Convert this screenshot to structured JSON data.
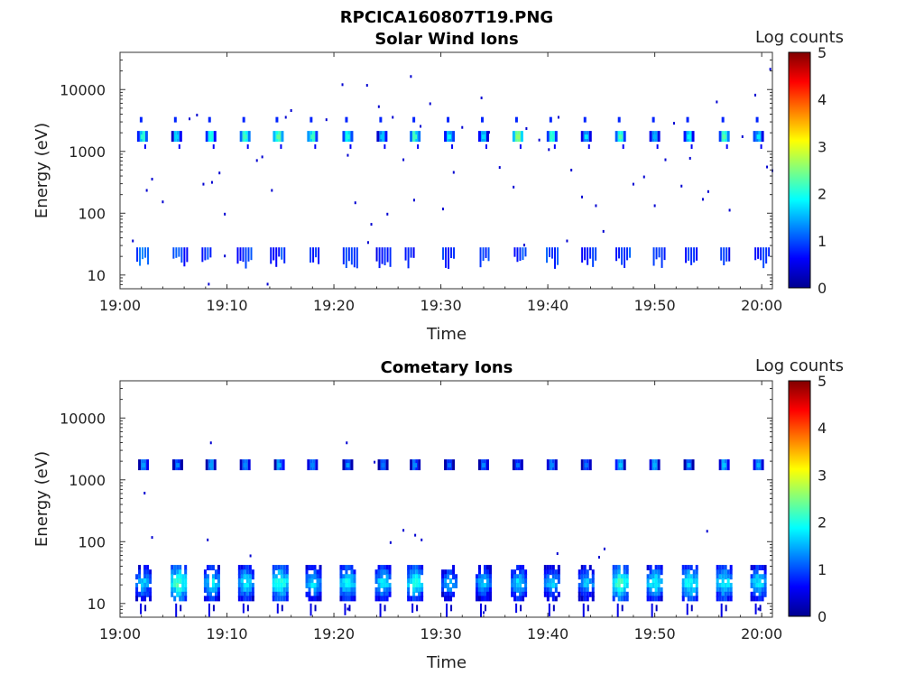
{
  "figure_title": "RPCICA160807T19.PNG",
  "chart_data": [
    {
      "type": "heatmap",
      "title": "Solar Wind Ions",
      "xlabel": "Time",
      "ylabel": "Energy (eV)",
      "xlim": [
        "19:00",
        "20:01"
      ],
      "ylim": [
        6,
        40000
      ],
      "y_scale": "log",
      "x_tick_labels": [
        "19:00",
        "19:10",
        "19:20",
        "19:30",
        "19:40",
        "19:50",
        "20:00"
      ],
      "y_tick_labels": [
        "10",
        "100",
        "1000",
        "10000"
      ],
      "colorbar": {
        "label": "Log counts",
        "min": 0,
        "max": 5,
        "ticks": [
          "0",
          "1",
          "2",
          "3",
          "4",
          "5"
        ]
      },
      "clusters": [
        {
          "t": 2.1,
          "e": 1750,
          "v": 2.1
        },
        {
          "t": 5.3,
          "e": 1750,
          "v": 1.7
        },
        {
          "t": 8.5,
          "e": 1750,
          "v": 2.0
        },
        {
          "t": 11.7,
          "e": 1750,
          "v": 2.2
        },
        {
          "t": 14.8,
          "e": 1750,
          "v": 2.4
        },
        {
          "t": 18.0,
          "e": 1750,
          "v": 2.2
        },
        {
          "t": 21.3,
          "e": 1750,
          "v": 2.0
        },
        {
          "t": 24.5,
          "e": 1750,
          "v": 1.6
        },
        {
          "t": 27.6,
          "e": 1750,
          "v": 2.2
        },
        {
          "t": 30.8,
          "e": 1750,
          "v": 1.9
        },
        {
          "t": 34.0,
          "e": 1750,
          "v": 1.7
        },
        {
          "t": 37.2,
          "e": 1750,
          "v": 2.6
        },
        {
          "t": 40.4,
          "e": 1750,
          "v": 2.1
        },
        {
          "t": 43.6,
          "e": 1750,
          "v": 1.8
        },
        {
          "t": 46.8,
          "e": 1750,
          "v": 2.3
        },
        {
          "t": 50.0,
          "e": 1750,
          "v": 1.5
        },
        {
          "t": 53.2,
          "e": 1750,
          "v": 1.9
        },
        {
          "t": 56.5,
          "e": 1750,
          "v": 2.3
        },
        {
          "t": 59.7,
          "e": 1750,
          "v": 1.8
        }
      ],
      "low_energy_blobs": [
        {
          "t": 2.2,
          "v": 0.8
        },
        {
          "t": 5.6,
          "v": 0.6
        },
        {
          "t": 8.3,
          "v": 0.7
        },
        {
          "t": 11.6,
          "v": 0.6
        },
        {
          "t": 14.7,
          "v": 0.6
        },
        {
          "t": 18.4,
          "v": 0.5
        },
        {
          "t": 21.5,
          "v": 0.6
        },
        {
          "t": 24.6,
          "v": 0.5
        },
        {
          "t": 27.3,
          "v": 0.5
        },
        {
          "t": 30.8,
          "v": 0.5
        },
        {
          "t": 34.3,
          "v": 0.6
        },
        {
          "t": 37.5,
          "v": 0.6
        },
        {
          "t": 40.5,
          "v": 0.7
        },
        {
          "t": 43.8,
          "v": 0.5
        },
        {
          "t": 47.0,
          "v": 0.7
        },
        {
          "t": 50.5,
          "v": 0.6
        },
        {
          "t": 53.5,
          "v": 0.6
        },
        {
          "t": 56.8,
          "v": 0.5
        },
        {
          "t": 60.0,
          "v": 0.6
        }
      ],
      "scatter": [
        {
          "t": 1.2,
          "e": 35
        },
        {
          "t": 2.5,
          "e": 230
        },
        {
          "t": 3.0,
          "e": 350
        },
        {
          "t": 4.0,
          "e": 150
        },
        {
          "t": 6.5,
          "e": 3300
        },
        {
          "t": 7.2,
          "e": 3800
        },
        {
          "t": 7.8,
          "e": 290
        },
        {
          "t": 8.6,
          "e": 310
        },
        {
          "t": 9.3,
          "e": 440
        },
        {
          "t": 9.8,
          "e": 95
        },
        {
          "t": 12.8,
          "e": 700
        },
        {
          "t": 13.3,
          "e": 800
        },
        {
          "t": 14.2,
          "e": 230
        },
        {
          "t": 15.5,
          "e": 3500
        },
        {
          "t": 16.0,
          "e": 4500
        },
        {
          "t": 19.3,
          "e": 3200
        },
        {
          "t": 20.8,
          "e": 11800
        },
        {
          "t": 21.3,
          "e": 850
        },
        {
          "t": 22.0,
          "e": 145
        },
        {
          "t": 23.1,
          "e": 11500
        },
        {
          "t": 23.5,
          "e": 65
        },
        {
          "t": 24.2,
          "e": 5200
        },
        {
          "t": 25.0,
          "e": 95
        },
        {
          "t": 25.5,
          "e": 3500
        },
        {
          "t": 26.5,
          "e": 720
        },
        {
          "t": 27.2,
          "e": 16000
        },
        {
          "t": 27.5,
          "e": 160
        },
        {
          "t": 28.1,
          "e": 2500
        },
        {
          "t": 29.0,
          "e": 5800
        },
        {
          "t": 30.2,
          "e": 115
        },
        {
          "t": 31.2,
          "e": 450
        },
        {
          "t": 32.0,
          "e": 2400
        },
        {
          "t": 33.8,
          "e": 7200
        },
        {
          "t": 34.5,
          "e": 2000
        },
        {
          "t": 35.5,
          "e": 540
        },
        {
          "t": 36.8,
          "e": 260
        },
        {
          "t": 38.0,
          "e": 2300
        },
        {
          "t": 39.2,
          "e": 1500
        },
        {
          "t": 40.1,
          "e": 1050
        },
        {
          "t": 41.0,
          "e": 3500
        },
        {
          "t": 42.2,
          "e": 490
        },
        {
          "t": 43.2,
          "e": 180
        },
        {
          "t": 44.5,
          "e": 130
        },
        {
          "t": 45.2,
          "e": 50
        },
        {
          "t": 48.0,
          "e": 290
        },
        {
          "t": 49.0,
          "e": 380
        },
        {
          "t": 50.0,
          "e": 130
        },
        {
          "t": 51.0,
          "e": 720
        },
        {
          "t": 51.8,
          "e": 2800
        },
        {
          "t": 52.5,
          "e": 270
        },
        {
          "t": 53.3,
          "e": 760
        },
        {
          "t": 54.5,
          "e": 165
        },
        {
          "t": 55.0,
          "e": 220
        },
        {
          "t": 55.8,
          "e": 6200
        },
        {
          "t": 57.0,
          "e": 110
        },
        {
          "t": 58.2,
          "e": 1700
        },
        {
          "t": 59.4,
          "e": 8000
        },
        {
          "t": 60.5,
          "e": 550
        },
        {
          "t": 60.8,
          "e": 21000
        },
        {
          "t": 61.0,
          "e": 480
        },
        {
          "t": 37.8,
          "e": 30
        },
        {
          "t": 41.8,
          "e": 35
        },
        {
          "t": 23.2,
          "e": 33
        },
        {
          "t": 9.8,
          "e": 20
        },
        {
          "t": 13.8,
          "e": 7
        },
        {
          "t": 8.3,
          "e": 7
        }
      ]
    },
    {
      "type": "heatmap",
      "title": "Cometary Ions",
      "xlabel": "Time",
      "ylabel": "Energy (eV)",
      "xlim": [
        "19:00",
        "20:01"
      ],
      "ylim": [
        6,
        40000
      ],
      "y_scale": "log",
      "x_tick_labels": [
        "19:00",
        "19:10",
        "19:20",
        "19:30",
        "19:40",
        "19:50",
        "20:00"
      ],
      "y_tick_labels": [
        "10",
        "100",
        "1000",
        "10000"
      ],
      "colorbar": {
        "label": "Log counts",
        "min": 0,
        "max": 5,
        "ticks": [
          "0",
          "1",
          "2",
          "3",
          "4",
          "5"
        ]
      },
      "clusters": [
        {
          "t": 2.2,
          "e": 1750,
          "v": 1.4
        },
        {
          "t": 5.4,
          "e": 1750,
          "v": 1.3
        },
        {
          "t": 8.5,
          "e": 1750,
          "v": 1.4
        },
        {
          "t": 11.7,
          "e": 1750,
          "v": 1.3
        },
        {
          "t": 14.9,
          "e": 1750,
          "v": 1.5
        },
        {
          "t": 18.0,
          "e": 1750,
          "v": 1.3
        },
        {
          "t": 21.3,
          "e": 1750,
          "v": 1.4
        },
        {
          "t": 24.6,
          "e": 1750,
          "v": 1.2
        },
        {
          "t": 27.6,
          "e": 1750,
          "v": 1.3
        },
        {
          "t": 30.8,
          "e": 1750,
          "v": 1.2
        },
        {
          "t": 34.0,
          "e": 1750,
          "v": 1.3
        },
        {
          "t": 37.2,
          "e": 1750,
          "v": 1.2
        },
        {
          "t": 40.4,
          "e": 1750,
          "v": 1.3
        },
        {
          "t": 43.6,
          "e": 1750,
          "v": 1.2
        },
        {
          "t": 46.8,
          "e": 1750,
          "v": 1.6
        },
        {
          "t": 50.0,
          "e": 1750,
          "v": 1.5
        },
        {
          "t": 53.2,
          "e": 1750,
          "v": 1.5
        },
        {
          "t": 56.5,
          "e": 1750,
          "v": 1.6
        },
        {
          "t": 59.7,
          "e": 1750,
          "v": 1.5
        }
      ],
      "low_energy_blobs": [
        {
          "t": 2.2,
          "v": 2.0
        },
        {
          "t": 5.5,
          "v": 2.6
        },
        {
          "t": 8.6,
          "v": 2.2
        },
        {
          "t": 11.8,
          "v": 2.2
        },
        {
          "t": 15.0,
          "v": 2.5
        },
        {
          "t": 18.1,
          "v": 2.1
        },
        {
          "t": 21.3,
          "v": 2.3
        },
        {
          "t": 24.6,
          "v": 2.2
        },
        {
          "t": 27.6,
          "v": 2.4
        },
        {
          "t": 30.8,
          "v": 1.9
        },
        {
          "t": 34.0,
          "v": 2.0
        },
        {
          "t": 37.3,
          "v": 2.1
        },
        {
          "t": 40.4,
          "v": 2.0
        },
        {
          "t": 43.6,
          "v": 2.0
        },
        {
          "t": 46.8,
          "v": 2.6
        },
        {
          "t": 50.0,
          "v": 2.3
        },
        {
          "t": 53.3,
          "v": 2.4
        },
        {
          "t": 56.5,
          "v": 2.3
        },
        {
          "t": 59.7,
          "v": 2.2
        }
      ],
      "scatter": [
        {
          "t": 2.3,
          "e": 600
        },
        {
          "t": 3.0,
          "e": 115
        },
        {
          "t": 8.2,
          "e": 105
        },
        {
          "t": 8.5,
          "e": 3900
        },
        {
          "t": 12.2,
          "e": 58
        },
        {
          "t": 21.2,
          "e": 3900
        },
        {
          "t": 23.8,
          "e": 1900
        },
        {
          "t": 25.3,
          "e": 95
        },
        {
          "t": 26.5,
          "e": 150
        },
        {
          "t": 27.6,
          "e": 125
        },
        {
          "t": 28.2,
          "e": 105
        },
        {
          "t": 40.9,
          "e": 63
        },
        {
          "t": 44.8,
          "e": 55
        },
        {
          "t": 45.3,
          "e": 75
        },
        {
          "t": 54.9,
          "e": 145
        },
        {
          "t": 34.0,
          "e": 7
        },
        {
          "t": 21.3,
          "e": 8
        },
        {
          "t": 59.7,
          "e": 8
        }
      ]
    }
  ]
}
